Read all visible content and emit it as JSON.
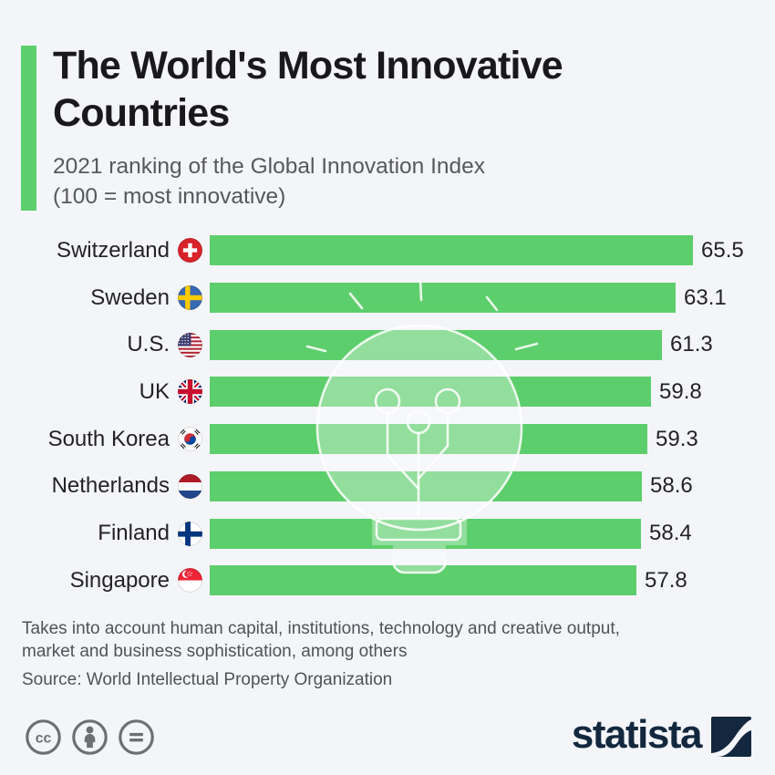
{
  "page": {
    "background": "#f4f5f9"
  },
  "header": {
    "title": "The World's Most Innovative Countries",
    "subtitle_line1": "2021 ranking of the Global Innovation Index",
    "subtitle_line2": "(100 = most innovative)",
    "accent_color": "#5dce6c"
  },
  "chart_data": {
    "type": "bar",
    "orientation": "horizontal",
    "title": "The World's Most Innovative Countries",
    "subtitle": "2021 ranking of the Global Innovation Index (100 = most innovative)",
    "value_range": [
      0,
      65.5
    ],
    "bar_color": "#5dce6c",
    "categories": [
      "Switzerland",
      "Sweden",
      "U.S.",
      "UK",
      "South Korea",
      "Netherlands",
      "Finland",
      "Singapore"
    ],
    "values": [
      65.5,
      63.1,
      61.3,
      59.8,
      59.3,
      58.6,
      58.4,
      57.8
    ],
    "flag_icons": [
      "flag-switzerland-icon",
      "flag-sweden-icon",
      "flag-us-icon",
      "flag-uk-icon",
      "flag-south-korea-icon",
      "flag-netherlands-icon",
      "flag-finland-icon",
      "flag-singapore-icon"
    ],
    "watermark_icon": "lightbulb-watermark-icon",
    "grid": false,
    "legend": false
  },
  "footer": {
    "note_line1": "Takes into account human capital, institutions, technology and creative output,",
    "note_line2": "market and business sophistication, among others",
    "source": "Source: World Intellectual Property Organization",
    "license_icons": [
      "cc-icon",
      "attribution-icon",
      "no-derivatives-icon"
    ],
    "brand_name": "statista",
    "brand_color": "#13283f"
  }
}
